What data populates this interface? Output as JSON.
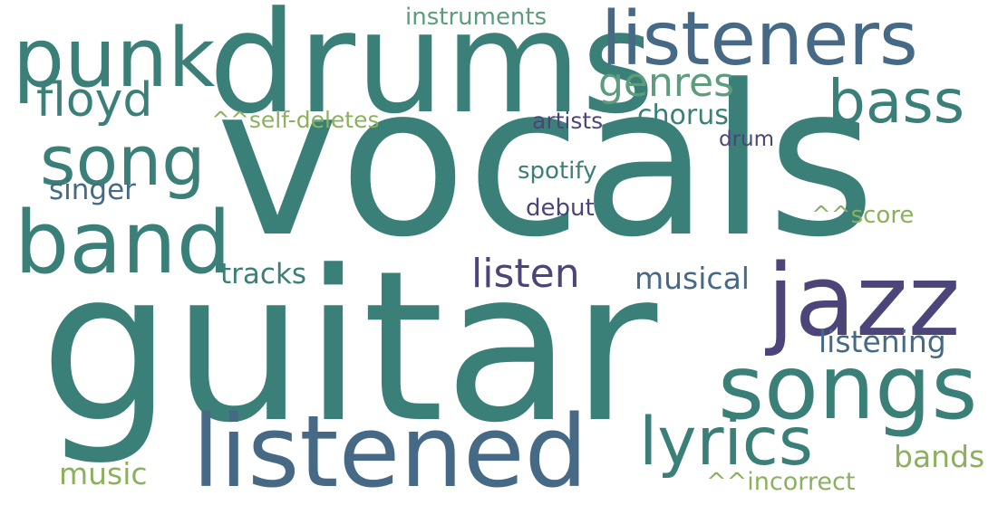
{
  "palette": {
    "teal": "#3a7f78",
    "slate_blue": "#466a86",
    "indigo": "#4b4579",
    "green": "#5d9c7c",
    "olive_green": "#8cb15e",
    "background": "#ffffff"
  },
  "words": {
    "guitar": "guitar",
    "vocals": "vocals",
    "drums": "drums",
    "listened": "listened",
    "listeners": "listeners",
    "songs": "songs",
    "punk": "punk",
    "band": "band",
    "song": "song",
    "jazz": "jazz",
    "lyrics": "lyrics",
    "bass": "bass",
    "floyd": "floyd",
    "genres": "genres",
    "listen": "listen",
    "instruments": "instruments",
    "self_deletes": "^^self-deletes",
    "artists": "artists",
    "chorus": "chorus",
    "drum": "drum",
    "spotify": "spotify",
    "singer": "singer",
    "debut": "debut",
    "score": "^^score",
    "tracks": "tracks",
    "musical": "musical",
    "listening": "listening",
    "music": "music",
    "incorrect": "^^incorrect",
    "bands": "bands"
  }
}
